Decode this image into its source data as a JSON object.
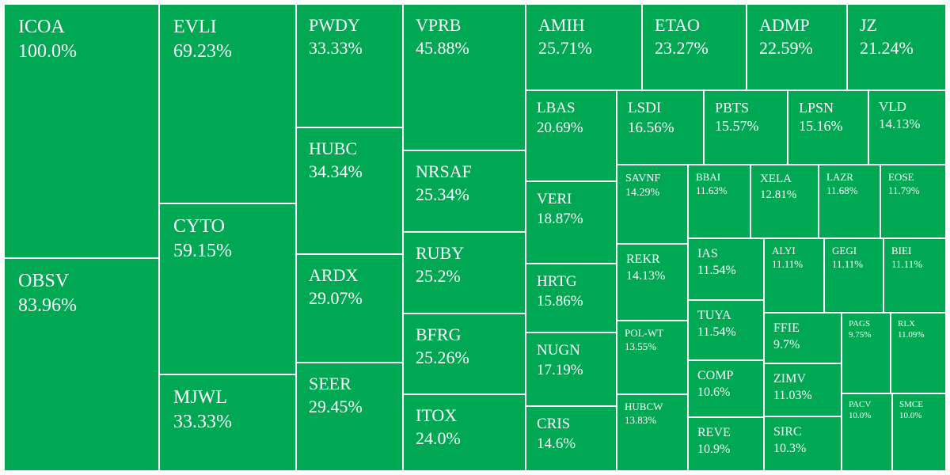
{
  "colors": {
    "tile": "#00a854",
    "border": "#ffffff",
    "text": "#ffffff"
  },
  "chart_data": {
    "type": "treemap",
    "items": [
      {
        "ticker": "ICOA",
        "change": "100.0%"
      },
      {
        "ticker": "OBSV",
        "change": "83.96%"
      },
      {
        "ticker": "EVLI",
        "change": "69.23%"
      },
      {
        "ticker": "CYTO",
        "change": "59.15%"
      },
      {
        "ticker": "MJWL",
        "change": "33.33%"
      },
      {
        "ticker": "PWDY",
        "change": "33.33%"
      },
      {
        "ticker": "HUBC",
        "change": "34.34%"
      },
      {
        "ticker": "ARDX",
        "change": "29.07%"
      },
      {
        "ticker": "SEER",
        "change": "29.45%"
      },
      {
        "ticker": "VPRB",
        "change": "45.88%"
      },
      {
        "ticker": "NRSAF",
        "change": "25.34%"
      },
      {
        "ticker": "RUBY",
        "change": "25.2%"
      },
      {
        "ticker": "BFRG",
        "change": "25.26%"
      },
      {
        "ticker": "ITOX",
        "change": "24.0%"
      },
      {
        "ticker": "AMIH",
        "change": "25.71%"
      },
      {
        "ticker": "ETAO",
        "change": "23.27%"
      },
      {
        "ticker": "ADMP",
        "change": "22.59%"
      },
      {
        "ticker": "JZ",
        "change": "21.24%"
      },
      {
        "ticker": "LBAS",
        "change": "20.69%"
      },
      {
        "ticker": "VERI",
        "change": "18.87%"
      },
      {
        "ticker": "HRTG",
        "change": "15.86%"
      },
      {
        "ticker": "NUGN",
        "change": "17.19%"
      },
      {
        "ticker": "CRIS",
        "change": "14.6%"
      },
      {
        "ticker": "LSDI",
        "change": "16.56%"
      },
      {
        "ticker": "PBTS",
        "change": "15.57%"
      },
      {
        "ticker": "LPSN",
        "change": "15.16%"
      },
      {
        "ticker": "VLD",
        "change": "14.13%"
      },
      {
        "ticker": "SAVNF",
        "change": "14.29%"
      },
      {
        "ticker": "BBAI",
        "change": "11.63%"
      },
      {
        "ticker": "XELA",
        "change": "12.81%"
      },
      {
        "ticker": "LAZR",
        "change": "11.68%"
      },
      {
        "ticker": "EOSE",
        "change": "11.79%"
      },
      {
        "ticker": "REKR",
        "change": "14.13%"
      },
      {
        "ticker": "IAS",
        "change": "11.54%"
      },
      {
        "ticker": "ALYI",
        "change": "11.11%"
      },
      {
        "ticker": "GEGI",
        "change": "11.11%"
      },
      {
        "ticker": "BIEI",
        "change": "11.11%"
      },
      {
        "ticker": "POL-WT",
        "change": "13.55%"
      },
      {
        "ticker": "TUYA",
        "change": "11.54%"
      },
      {
        "ticker": "FFIE",
        "change": "9.7%"
      },
      {
        "ticker": "PAGS",
        "change": "9.75%"
      },
      {
        "ticker": "RLX",
        "change": "11.09%"
      },
      {
        "ticker": "COMP",
        "change": "10.6%"
      },
      {
        "ticker": "ZIMV",
        "change": "11.03%"
      },
      {
        "ticker": "HUBCW",
        "change": "13.83%"
      },
      {
        "ticker": "REVE",
        "change": "10.9%"
      },
      {
        "ticker": "SIRC",
        "change": "10.3%"
      },
      {
        "ticker": "PACV",
        "change": "10.0%"
      },
      {
        "ticker": "SMCE",
        "change": "10.0%"
      }
    ]
  }
}
